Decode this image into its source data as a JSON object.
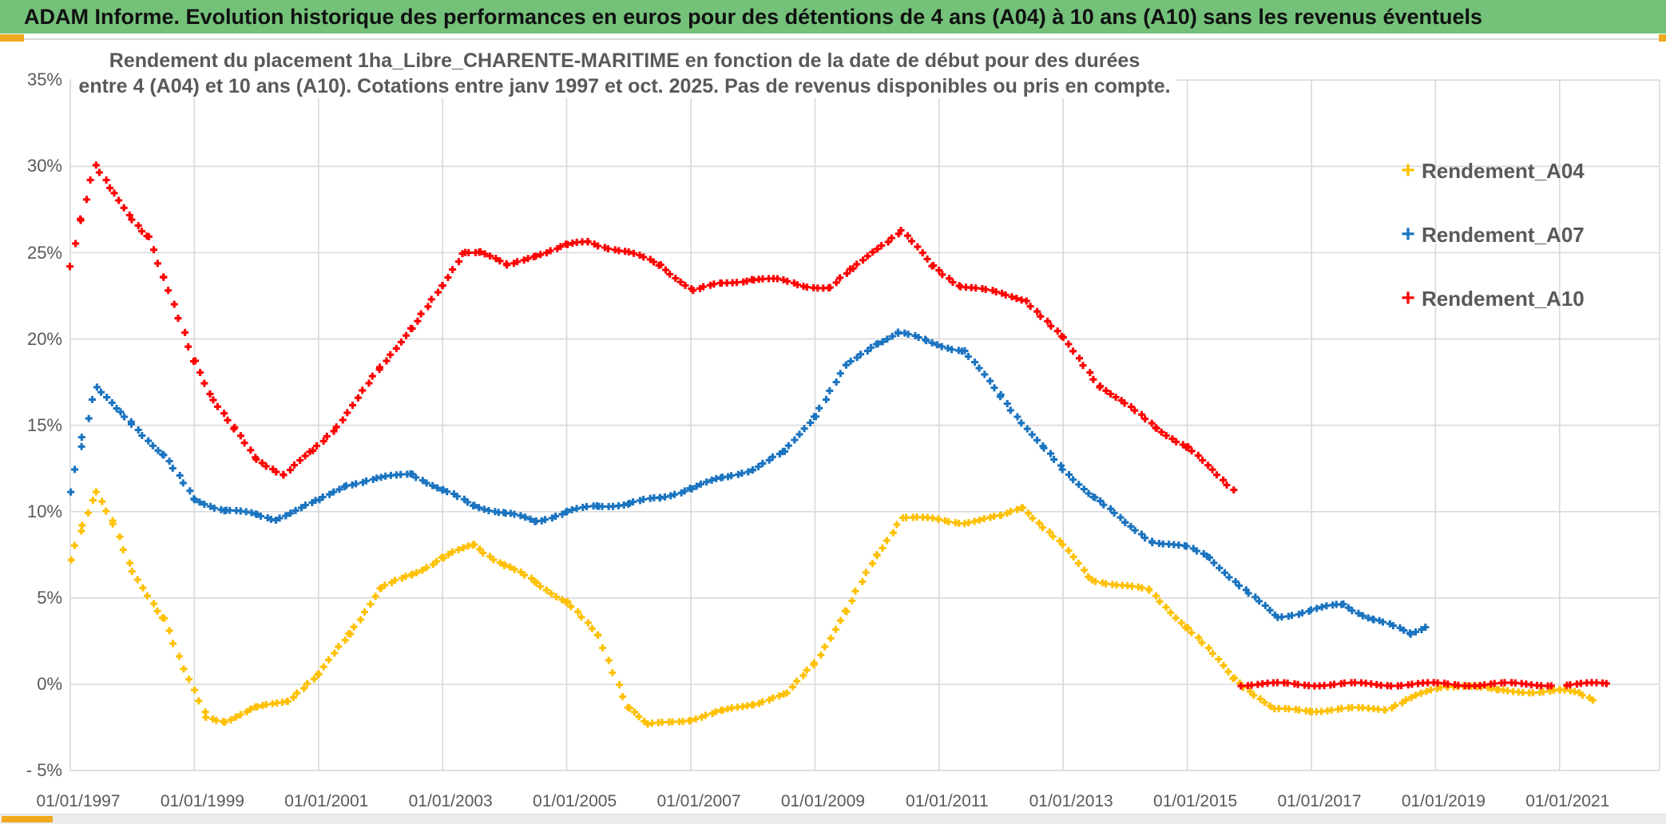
{
  "header": {
    "title": "ADAM Informe. Evolution historique des performances en euros pour des détentions de 4 ans (A04) à 10 ans (A10) sans les revenus éventuels",
    "bg_color": "#74c17a",
    "accent_color": "#f0a81c"
  },
  "chart_data": {
    "type": "scatter",
    "marker": "plus",
    "title_line1": "Rendement du placement 1ha_Libre_CHARENTE-MARITIME en fonction de la date de début pour des durées",
    "title_line2": "entre 4 (A04) et 10 ans (A10). Cotations entre janv 1997 et oct. 2025. Pas de revenus disponibles ou pris en compte.",
    "grid": true,
    "grid_color": "#d9d9d9",
    "text_color": "#595959",
    "x_axis": {
      "tick_labels": [
        "01/01/1997",
        "01/01/1999",
        "01/01/2001",
        "01/01/2003",
        "01/01/2005",
        "01/01/2007",
        "01/01/2009",
        "01/01/2011",
        "01/01/2013",
        "01/01/2015",
        "01/01/2017",
        "01/01/2019",
        "01/01/2021"
      ],
      "tick_years": [
        1997,
        1999,
        2001,
        2003,
        2005,
        2007,
        2009,
        2011,
        2013,
        2015,
        2017,
        2019,
        2021
      ],
      "min_year": 1997,
      "max_year": 2023
    },
    "y_axis": {
      "unit": "%",
      "tick_labels": [
        "35%",
        "30%",
        "25%",
        "20%",
        "15%",
        "10%",
        "5%",
        "0%",
        "- 5%"
      ],
      "tick_values": [
        35,
        30,
        25,
        20,
        15,
        10,
        5,
        0,
        -5
      ],
      "min": -5,
      "max": 35
    },
    "legend": [
      {
        "label": "Rendement_A04",
        "color": "#FFC000"
      },
      {
        "label": "Rendement_A07",
        "color": "#1B74C0"
      },
      {
        "label": "Rendement_A10",
        "color": "#FF0000"
      }
    ],
    "legend_position": "right-inside",
    "series": [
      {
        "name": "Rendement_A04",
        "color": "#FFC000",
        "segments": [
          [
            [
              1997.0,
              7.2
            ],
            [
              1997.2,
              9.3
            ],
            [
              1997.42,
              11.2
            ],
            [
              1997.7,
              9.2
            ],
            [
              1998.0,
              6.5
            ],
            [
              1998.5,
              3.9
            ],
            [
              1998.83,
              0.8
            ],
            [
              1999.2,
              -1.9
            ],
            [
              1999.5,
              -2.1
            ],
            [
              2000.0,
              -1.4
            ],
            [
              2000.5,
              -0.9
            ],
            [
              2001.0,
              0.5
            ],
            [
              2001.5,
              3.0
            ],
            [
              2002.0,
              5.5
            ],
            [
              2002.5,
              6.4
            ],
            [
              2003.0,
              7.3
            ],
            [
              2003.5,
              8.1
            ],
            [
              2004.0,
              6.9
            ],
            [
              2004.5,
              5.9
            ],
            [
              2005.0,
              4.8
            ],
            [
              2005.5,
              2.8
            ],
            [
              2006.0,
              -1.3
            ],
            [
              2006.3,
              -2.4
            ],
            [
              2007.0,
              -2.0
            ],
            [
              2007.5,
              -1.6
            ],
            [
              2008.0,
              -1.1
            ],
            [
              2008.55,
              -0.6
            ],
            [
              2009.0,
              1.3
            ],
            [
              2009.5,
              4.2
            ],
            [
              2010.0,
              7.5
            ],
            [
              2010.4,
              9.7
            ],
            [
              2011.0,
              9.5
            ],
            [
              2011.4,
              9.4
            ],
            [
              2012.0,
              9.7
            ],
            [
              2012.35,
              10.3
            ],
            [
              2013.0,
              8.0
            ],
            [
              2013.45,
              6.1
            ],
            [
              2014.4,
              5.4
            ],
            [
              2015.0,
              3.3
            ],
            [
              2015.75,
              0.4
            ],
            [
              2016.4,
              -1.5
            ],
            [
              2017.0,
              -1.5
            ],
            [
              2018.2,
              -1.4
            ],
            [
              2018.6,
              -0.8
            ],
            [
              2019.2,
              -0.1
            ],
            [
              2019.5,
              0.0
            ],
            [
              2020.0,
              -0.4
            ],
            [
              2021.0,
              -0.4
            ],
            [
              2021.3,
              -0.5
            ],
            [
              2021.6,
              -0.9
            ]
          ]
        ]
      },
      {
        "name": "Rendement_A07",
        "color": "#1B74C0",
        "segments": [
          [
            [
              1997.0,
              11.2
            ],
            [
              1997.2,
              14.4
            ],
            [
              1997.42,
              17.2
            ],
            [
              1997.8,
              15.7
            ],
            [
              1998.0,
              15.1
            ],
            [
              1998.5,
              13.3
            ],
            [
              1999.0,
              10.7
            ],
            [
              1999.5,
              10.1
            ],
            [
              2000.0,
              9.8
            ],
            [
              2000.3,
              9.6
            ],
            [
              2001.0,
              10.6
            ],
            [
              2001.45,
              11.6
            ],
            [
              2002.0,
              11.9
            ],
            [
              2002.5,
              12.25
            ],
            [
              2003.0,
              11.2
            ],
            [
              2003.5,
              10.4
            ],
            [
              2004.0,
              9.9
            ],
            [
              2004.5,
              9.45
            ],
            [
              2005.0,
              10.0
            ],
            [
              2005.5,
              10.3
            ],
            [
              2006.0,
              10.5
            ],
            [
              2006.5,
              10.75
            ],
            [
              2007.0,
              11.4
            ],
            [
              2007.5,
              11.9
            ],
            [
              2008.0,
              12.5
            ],
            [
              2008.5,
              13.4
            ],
            [
              2009.0,
              15.6
            ],
            [
              2009.5,
              18.4
            ],
            [
              2010.0,
              19.8
            ],
            [
              2010.35,
              20.35
            ],
            [
              2010.8,
              19.9
            ],
            [
              2011.4,
              19.3
            ],
            [
              2012.0,
              16.7
            ],
            [
              2012.7,
              13.6
            ],
            [
              2013.0,
              12.4
            ],
            [
              2013.5,
              10.9
            ],
            [
              2014.0,
              9.3
            ],
            [
              2014.45,
              8.3
            ],
            [
              2015.0,
              7.9
            ],
            [
              2015.35,
              7.4
            ],
            [
              2016.0,
              5.2
            ],
            [
              2016.45,
              3.9
            ],
            [
              2017.0,
              4.3
            ],
            [
              2017.5,
              4.6
            ],
            [
              2018.0,
              3.8
            ],
            [
              2018.6,
              2.9
            ],
            [
              2018.85,
              3.4
            ]
          ]
        ]
      },
      {
        "name": "Rendement_A10",
        "color": "#FF0000",
        "segments": [
          [
            [
              1997.0,
              24.3
            ],
            [
              1997.17,
              27.0
            ],
            [
              1997.4,
              30.0
            ],
            [
              1997.7,
              28.4
            ],
            [
              1998.0,
              27.0
            ],
            [
              1998.25,
              26.0
            ],
            [
              1998.5,
              23.5
            ],
            [
              1999.0,
              18.8
            ],
            [
              1999.3,
              16.5
            ],
            [
              1999.65,
              14.7
            ],
            [
              2000.0,
              13.1
            ],
            [
              2000.45,
              12.1
            ],
            [
              2000.9,
              13.5
            ],
            [
              2001.3,
              15.0
            ],
            [
              2002.0,
              18.3
            ],
            [
              2002.5,
              20.7
            ],
            [
              2003.0,
              23.0
            ],
            [
              2003.35,
              25.1
            ],
            [
              2003.6,
              25.1
            ],
            [
              2004.05,
              24.2
            ],
            [
              2004.5,
              24.9
            ],
            [
              2005.0,
              25.4
            ],
            [
              2005.35,
              25.65
            ],
            [
              2006.0,
              25.0
            ],
            [
              2006.5,
              24.3
            ],
            [
              2007.05,
              22.8
            ],
            [
              2007.5,
              23.2
            ],
            [
              2008.0,
              23.5
            ],
            [
              2008.4,
              23.4
            ],
            [
              2008.8,
              23.1
            ],
            [
              2009.25,
              23.0
            ],
            [
              2009.6,
              24.0
            ],
            [
              2010.0,
              25.3
            ],
            [
              2010.4,
              26.3
            ],
            [
              2010.9,
              24.2
            ],
            [
              2011.35,
              23.1
            ],
            [
              2012.0,
              22.6
            ],
            [
              2012.4,
              22.3
            ],
            [
              2013.0,
              20.0
            ],
            [
              2013.6,
              17.3
            ],
            [
              2014.0,
              16.2
            ],
            [
              2014.5,
              14.9
            ],
            [
              2015.0,
              13.7
            ],
            [
              2015.4,
              12.4
            ],
            [
              2015.75,
              11.3
            ]
          ],
          [
            [
              2015.88,
              0.0
            ],
            [
              2020.95,
              0.0
            ]
          ],
          [
            [
              2021.1,
              0.0
            ],
            [
              2021.82,
              0.0
            ]
          ]
        ]
      }
    ]
  },
  "scrollbar": {
    "thumb_color": "#f0a81c",
    "track_color": "#ececec"
  }
}
